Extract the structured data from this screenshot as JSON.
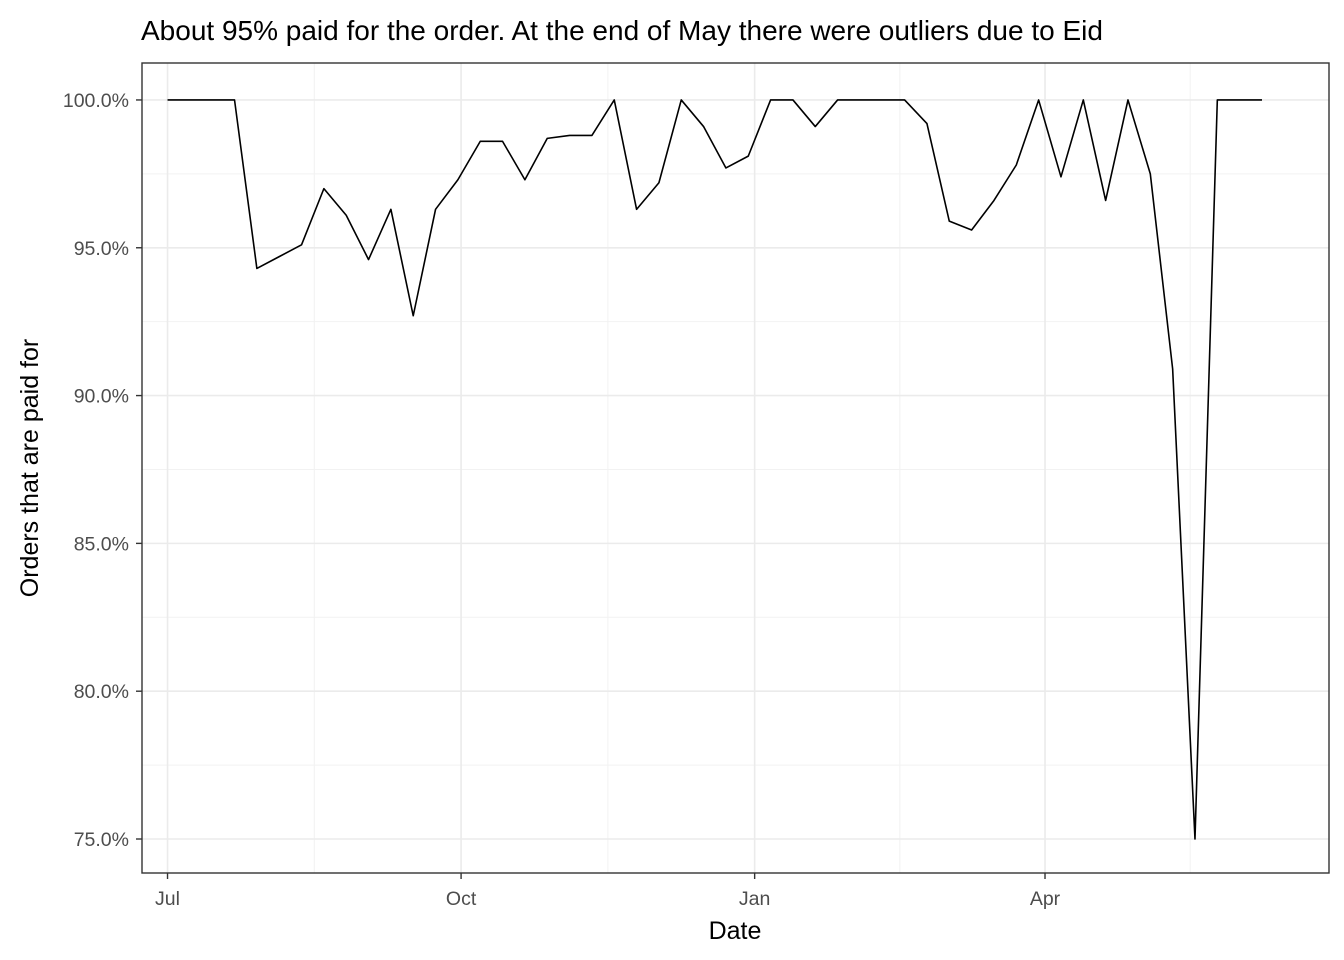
{
  "chart_data": {
    "type": "line",
    "title": "About 95% paid for the order. At the end of May there were outliers due to Eid",
    "xlabel": "Date",
    "ylabel": "Orders that are paid for",
    "x_axis_type": "date",
    "xlim": [
      "2019-06-23",
      "2020-06-29"
    ],
    "ylim": [
      0.7385,
      1.0125
    ],
    "x_ticks": [
      {
        "date": "2019-07-01",
        "label": "Jul"
      },
      {
        "date": "2019-10-01",
        "label": "Oct"
      },
      {
        "date": "2020-01-01",
        "label": "Jan"
      },
      {
        "date": "2020-04-01",
        "label": "Apr"
      }
    ],
    "y_ticks": [
      {
        "value": 1.0,
        "label": "100.0%"
      },
      {
        "value": 0.95,
        "label": "95.0%"
      },
      {
        "value": 0.9,
        "label": "90.0%"
      },
      {
        "value": 0.85,
        "label": "85.0%"
      },
      {
        "value": 0.8,
        "label": "80.0%"
      },
      {
        "value": 0.75,
        "label": "75.0%"
      }
    ],
    "grid": true,
    "series": [
      {
        "color": "#000000",
        "x": [
          "2019-07-01",
          "2019-07-08",
          "2019-07-15",
          "2019-07-22",
          "2019-07-29",
          "2019-08-05",
          "2019-08-12",
          "2019-08-19",
          "2019-08-26",
          "2019-09-02",
          "2019-09-09",
          "2019-09-16",
          "2019-09-23",
          "2019-09-30",
          "2019-10-07",
          "2019-10-14",
          "2019-10-21",
          "2019-10-28",
          "2019-11-04",
          "2019-11-11",
          "2019-11-18",
          "2019-11-25",
          "2019-12-02",
          "2019-12-09",
          "2019-12-16",
          "2019-12-23",
          "2019-12-30",
          "2020-01-06",
          "2020-01-13",
          "2020-01-20",
          "2020-01-27",
          "2020-02-03",
          "2020-02-10",
          "2020-02-17",
          "2020-02-24",
          "2020-03-02",
          "2020-03-09",
          "2020-03-16",
          "2020-03-23",
          "2020-03-30",
          "2020-04-06",
          "2020-04-13",
          "2020-04-20",
          "2020-04-27",
          "2020-05-04",
          "2020-05-11",
          "2020-05-18",
          "2020-05-25",
          "2020-06-01",
          "2020-06-08"
        ],
        "values": [
          1.0,
          1.0,
          1.0,
          1.0,
          0.943,
          0.947,
          0.951,
          0.97,
          0.961,
          0.946,
          0.963,
          0.927,
          0.963,
          0.973,
          0.986,
          0.986,
          0.973,
          0.987,
          0.988,
          0.988,
          1.0,
          0.963,
          0.972,
          1.0,
          0.991,
          0.977,
          0.981,
          1.0,
          1.0,
          0.991,
          1.0,
          1.0,
          1.0,
          1.0,
          0.992,
          0.959,
          0.956,
          0.966,
          0.978,
          1.0,
          0.974,
          1.0,
          0.966,
          1.0,
          0.975,
          0.909,
          0.75,
          1.0,
          1.0,
          1.0
        ]
      }
    ]
  }
}
